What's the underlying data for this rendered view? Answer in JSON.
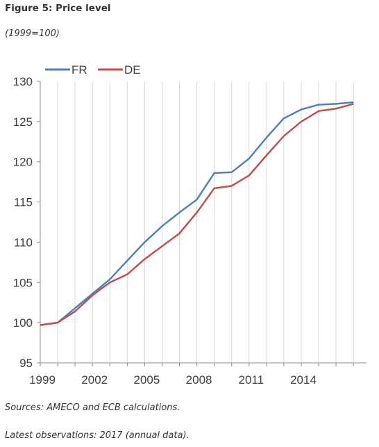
{
  "figure": {
    "title": "Figure 5: Price level",
    "subtitle": "(1999=100)"
  },
  "notes": {
    "sources": "Sources: AMECO and ECB calculations.",
    "latest": "Latest observations: 2017 (annual data)."
  },
  "chart_data": {
    "type": "line",
    "title": "",
    "xlabel": "",
    "ylabel": "",
    "x": [
      1999,
      2000,
      2001,
      2002,
      2003,
      2004,
      2005,
      2006,
      2007,
      2008,
      2009,
      2010,
      2011,
      2012,
      2013,
      2014,
      2015,
      2016,
      2017
    ],
    "x_ticks": [
      1999,
      2002,
      2005,
      2008,
      2011,
      2014
    ],
    "y_ticks": [
      95,
      100,
      105,
      110,
      115,
      120,
      125,
      130
    ],
    "ylim": [
      95,
      130
    ],
    "grid": "vertical",
    "legend": "top-left",
    "series": [
      {
        "name": "FR",
        "color": "#4f81bd",
        "values": [
          99.7,
          100.0,
          101.8,
          103.6,
          105.4,
          107.7,
          110.0,
          112.0,
          113.7,
          115.3,
          118.6,
          118.7,
          120.4,
          123.0,
          125.4,
          126.5,
          127.1,
          127.2,
          127.4
        ]
      },
      {
        "name": "DE",
        "color": "#c0504d",
        "values": [
          99.7,
          100.0,
          101.4,
          103.4,
          105.0,
          106.0,
          107.9,
          109.5,
          111.1,
          113.7,
          116.7,
          117.0,
          118.3,
          120.8,
          123.2,
          125.0,
          126.3,
          126.6,
          127.2
        ]
      }
    ]
  }
}
